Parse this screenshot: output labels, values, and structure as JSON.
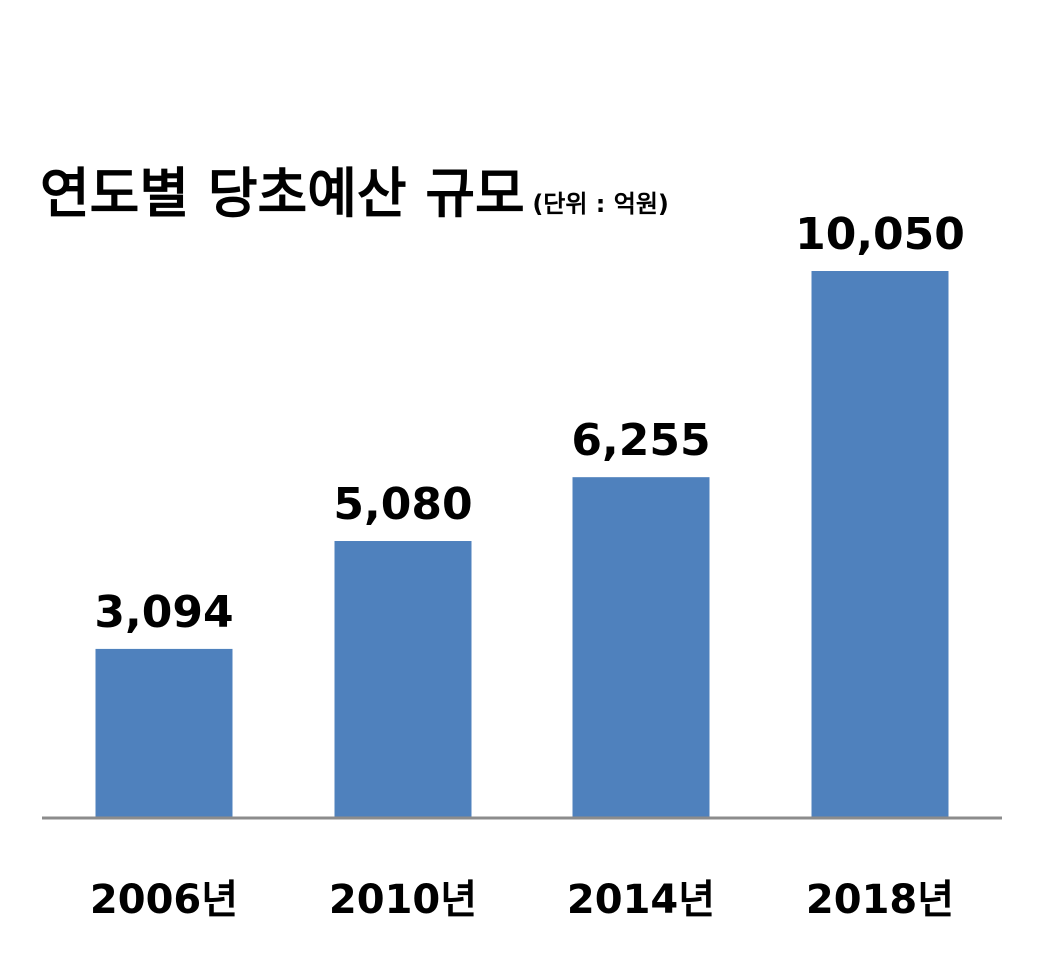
{
  "chart_data": {
    "type": "bar",
    "title": "연도별 당초예산 규모",
    "unit_note": "(단위 : 억원)",
    "categories": [
      "2006년",
      "2010년",
      "2014년",
      "2018년"
    ],
    "values": [
      3094,
      5080,
      6255,
      10050
    ],
    "value_labels": [
      "3,094",
      "5,080",
      "6,255",
      "10,050"
    ],
    "ylim": [
      0,
      10050
    ],
    "grid": false,
    "legend": "none",
    "colors": {
      "bar": "#4f81bd",
      "axis": "#8c8c8c",
      "text": "#000000"
    }
  }
}
